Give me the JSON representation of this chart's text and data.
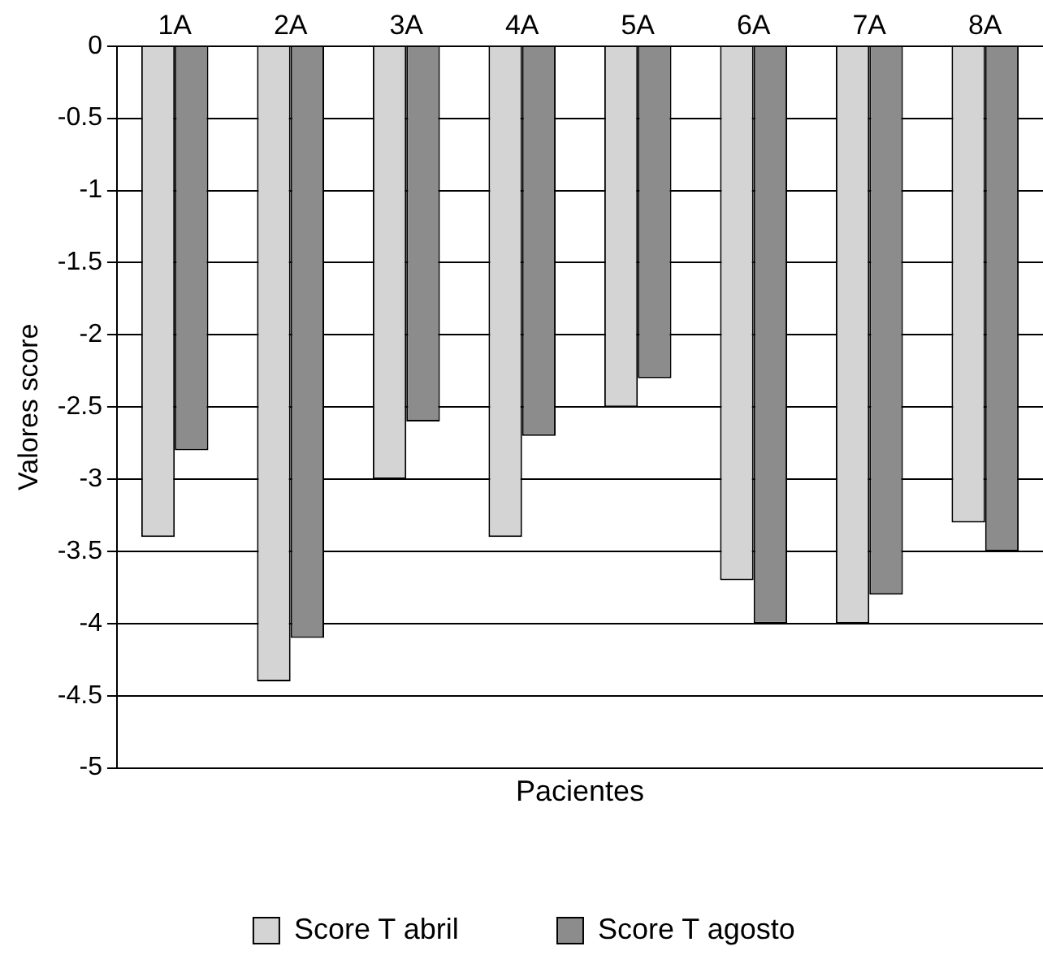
{
  "chart_data": {
    "type": "bar",
    "xlabel": "Pacientes",
    "ylabel": "Valores score",
    "categories": [
      "1A",
      "2A",
      "3A",
      "4A",
      "5A",
      "6A",
      "7A",
      "8A"
    ],
    "series": [
      {
        "name": "Score T abril",
        "color": "#d4d4d4",
        "values": [
          -3.4,
          -4.4,
          -3.0,
          -3.4,
          -2.5,
          -3.7,
          -4.0,
          -3.3
        ]
      },
      {
        "name": "Score T agosto",
        "color": "#8c8c8c",
        "values": [
          -2.8,
          -4.1,
          -2.6,
          -2.7,
          -2.3,
          -4.0,
          -3.8,
          -3.5
        ]
      }
    ],
    "ylim": [
      -5,
      0
    ],
    "yticks": [
      0,
      -0.5,
      -1,
      -1.5,
      -2,
      -2.5,
      -3,
      -3.5,
      -4,
      -4.5,
      -5
    ],
    "grid": "y",
    "legend": "bottom"
  }
}
